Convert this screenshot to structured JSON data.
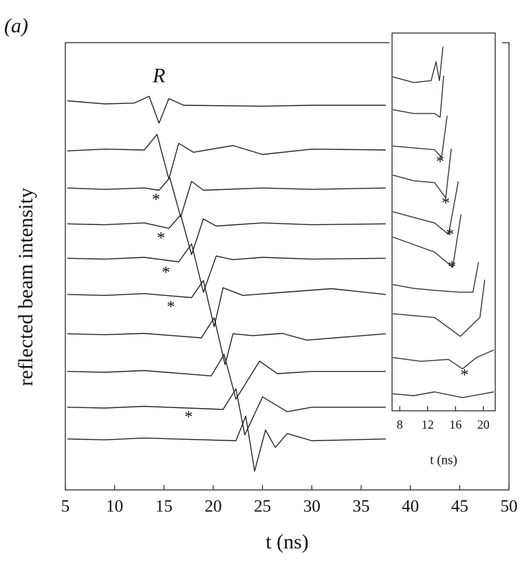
{
  "panel_label": "(a)",
  "chart_data": [
    {
      "type": "line",
      "xlabel": "t (ns)",
      "ylabel": "reflected beam intensity",
      "xlim": [
        5,
        50
      ],
      "ylim": [
        0,
        10
      ],
      "xticks": [
        5,
        10,
        15,
        20,
        25,
        30,
        35,
        40,
        45,
        50
      ],
      "color": "#222",
      "annotations": [
        {
          "text": "R",
          "x": 14.5,
          "y": 9.22
        },
        {
          "text": "*",
          "x": 14.2,
          "y": 6.46
        },
        {
          "text": "*",
          "x": 14.7,
          "y": 5.6
        },
        {
          "text": "*",
          "x": 15.2,
          "y": 4.83
        },
        {
          "text": "*",
          "x": 15.7,
          "y": 4.06
        },
        {
          "text": "*",
          "x": 17.5,
          "y": 1.6
        }
      ],
      "series": [
        {
          "x": [
            5.2,
            9,
            12,
            13.5,
            14.5,
            15.5,
            17,
            25,
            30,
            37.5
          ],
          "values": [
            8.7,
            8.63,
            8.65,
            8.8,
            8.2,
            8.75,
            8.6,
            8.58,
            8.6,
            8.6
          ]
        },
        {
          "x": [
            5.2,
            9,
            13,
            14.3,
            15.5,
            16.5,
            18,
            22,
            25,
            30,
            37.5
          ],
          "values": [
            7.58,
            7.62,
            7.6,
            7.95,
            6.95,
            7.75,
            7.55,
            7.7,
            7.5,
            7.62,
            7.6
          ]
        },
        {
          "x": [
            5.2,
            9,
            13,
            14.5,
            15.6,
            16.7,
            17.8,
            19,
            25,
            30,
            37.5
          ],
          "values": [
            6.75,
            6.72,
            6.75,
            6.7,
            6.98,
            6.1,
            6.9,
            6.7,
            6.75,
            6.72,
            6.75
          ]
        },
        {
          "x": [
            5.2,
            9,
            13,
            15.5,
            16.7,
            17.8,
            19,
            20.3,
            25,
            30,
            37.5
          ],
          "values": [
            5.95,
            5.93,
            5.97,
            5.85,
            6.15,
            5.26,
            6.06,
            5.9,
            5.97,
            5.93,
            5.95
          ]
        },
        {
          "x": [
            5.2,
            9,
            13,
            16.5,
            17.8,
            19,
            20.3,
            22,
            25,
            30,
            37.5
          ],
          "values": [
            5.18,
            5.16,
            5.2,
            5.1,
            5.5,
            4.42,
            5.23,
            5.15,
            5.2,
            5.16,
            5.18
          ]
        },
        {
          "x": [
            5.2,
            9,
            13,
            17.8,
            19,
            20.1,
            21,
            23,
            26,
            32,
            37.5
          ],
          "values": [
            4.37,
            4.35,
            4.39,
            4.3,
            4.68,
            3.65,
            4.52,
            4.35,
            4.4,
            4.5,
            4.37
          ]
        },
        {
          "x": [
            5.2,
            9,
            13,
            18.8,
            20.1,
            21.2,
            22,
            24,
            27,
            29.5,
            37.5
          ],
          "values": [
            3.49,
            3.47,
            3.5,
            3.4,
            3.85,
            2.8,
            3.49,
            3.45,
            3.5,
            3.35,
            3.49
          ]
        },
        {
          "x": [
            5.2,
            9,
            13,
            19.8,
            21.1,
            22.3,
            24.7,
            26.5,
            30,
            37.5
          ],
          "values": [
            2.65,
            2.63,
            2.67,
            2.55,
            3.03,
            2.03,
            2.88,
            2.6,
            2.65,
            2.65
          ]
        },
        {
          "x": [
            5.2,
            9,
            13,
            21,
            22.3,
            23.2,
            25,
            27.5,
            30,
            37.5
          ],
          "values": [
            1.85,
            1.83,
            1.87,
            1.8,
            2.26,
            1.23,
            2.08,
            1.75,
            1.85,
            1.85
          ]
        },
        {
          "x": [
            5.2,
            9,
            13,
            22.3,
            23.3,
            24.2,
            25.3,
            26.3,
            27.5,
            30,
            37.5
          ],
          "values": [
            1.14,
            1.12,
            1.16,
            1.1,
            1.65,
            0.42,
            1.34,
            0.95,
            1.26,
            1.1,
            1.14
          ]
        }
      ]
    },
    {
      "type": "line",
      "xlabel": "t (ns)",
      "xlim": [
        6.9,
        21.7
      ],
      "ylim": [
        0,
        10
      ],
      "xticks": [
        8,
        12,
        16,
        20
      ],
      "color": "#333",
      "annotations": [
        {
          "text": "*",
          "x": 13.8,
          "y": 6.56
        },
        {
          "text": "*",
          "x": 14.6,
          "y": 5.46
        },
        {
          "text": "*",
          "x": 15.2,
          "y": 4.63
        },
        {
          "text": "*",
          "x": 15.5,
          "y": 3.77
        },
        {
          "text": "*",
          "x": 17.3,
          "y": 0.91
        }
      ],
      "series": [
        {
          "x": [
            7,
            10,
            12.5,
            13.2,
            13.7,
            14.2
          ],
          "values": [
            8.84,
            8.69,
            8.74,
            9.24,
            8.74,
            9.64
          ]
        },
        {
          "x": [
            7,
            10,
            13,
            13.8,
            14.3
          ],
          "values": [
            7.97,
            7.87,
            7.87,
            7.77,
            8.87
          ]
        },
        {
          "x": [
            7,
            10,
            13,
            14,
            14.8
          ],
          "values": [
            7.01,
            6.96,
            6.91,
            6.71,
            7.81
          ]
        },
        {
          "x": [
            7,
            10,
            13,
            14.6,
            15.4
          ],
          "values": [
            6.24,
            6.09,
            6.04,
            5.64,
            6.94
          ]
        },
        {
          "x": [
            7,
            10,
            13,
            15,
            16.4
          ],
          "values": [
            5.27,
            5.12,
            4.97,
            4.67,
            6.07
          ]
        },
        {
          "x": [
            7,
            10,
            13,
            15.6,
            16.8
          ],
          "values": [
            4.6,
            4.4,
            4.2,
            3.8,
            5.2
          ]
        },
        {
          "x": [
            7,
            10,
            13,
            16.5,
            18.5,
            19.3
          ],
          "values": [
            3.34,
            3.24,
            3.19,
            3.14,
            3.14,
            3.94
          ]
        },
        {
          "x": [
            7,
            10,
            13,
            16.7,
            19.5,
            20.2
          ],
          "values": [
            2.57,
            2.52,
            2.47,
            1.97,
            2.47,
            3.47
          ]
        },
        {
          "x": [
            7,
            11,
            15,
            17,
            19,
            21.5
          ],
          "values": [
            1.41,
            1.31,
            1.36,
            1.11,
            1.41,
            1.61
          ]
        },
        {
          "x": [
            7,
            10,
            13,
            17,
            20,
            21.5
          ],
          "values": [
            0.45,
            0.4,
            0.5,
            0.35,
            0.45,
            0.5
          ]
        }
      ]
    }
  ]
}
